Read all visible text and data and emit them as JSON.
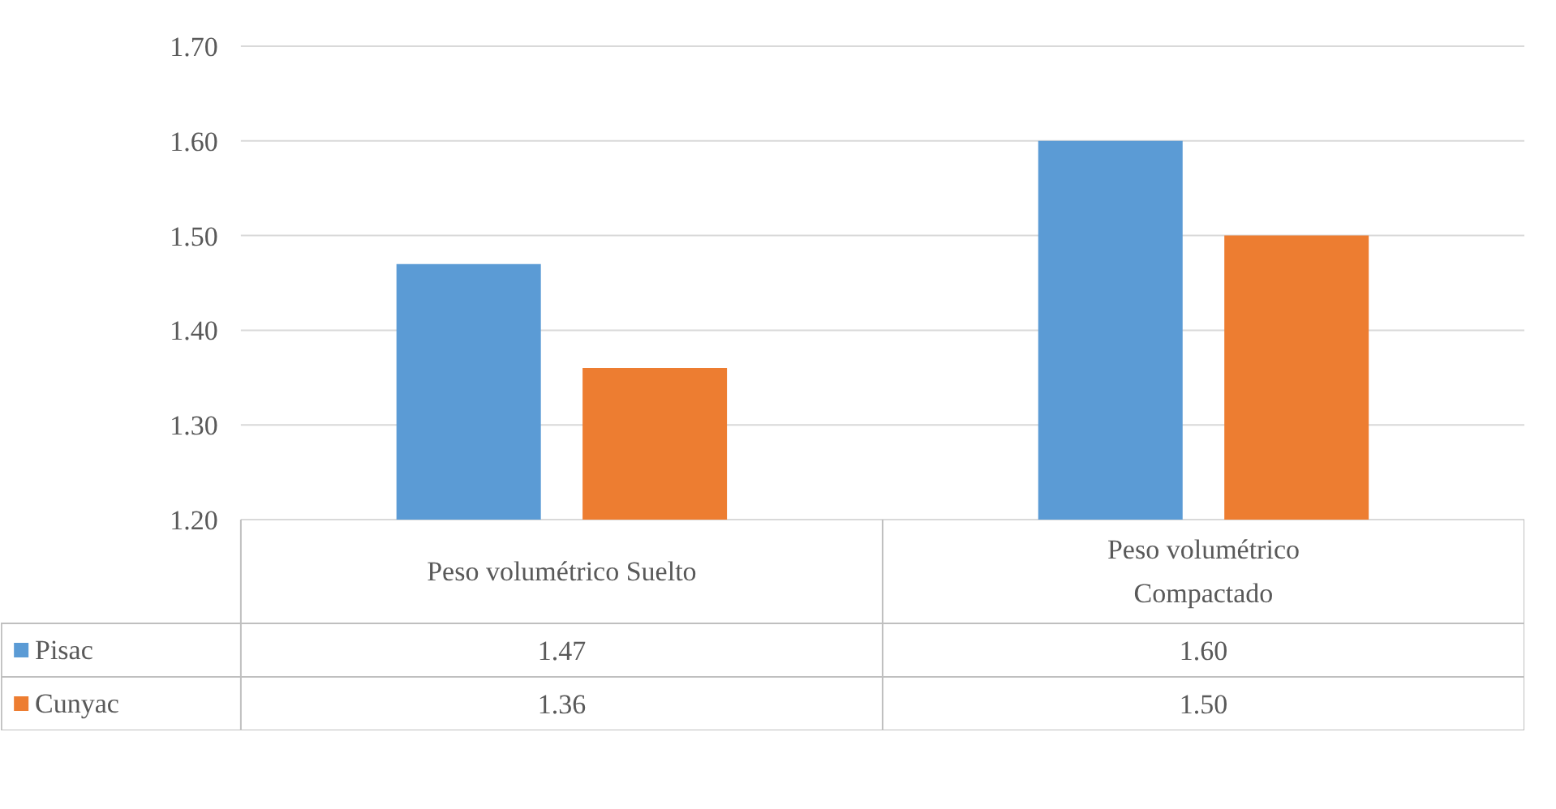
{
  "chart_data": {
    "type": "bar",
    "categories": [
      "Peso volumétrico Suelto",
      "Peso volumétrico Compactado"
    ],
    "series": [
      {
        "name": "Pisac",
        "color": "#5b9bd5",
        "values": [
          1.47,
          1.6
        ],
        "value_labels": [
          "1.47",
          "1.60"
        ]
      },
      {
        "name": "Cunyac",
        "color": "#ed7d31",
        "values": [
          1.36,
          1.5
        ],
        "value_labels": [
          "1.36",
          "1.50"
        ]
      }
    ],
    "ylim": [
      1.2,
      1.7
    ],
    "yticks": [
      {
        "value": 1.2,
        "label": "1.20"
      },
      {
        "value": 1.3,
        "label": "1.30"
      },
      {
        "value": 1.4,
        "label": "1.40"
      },
      {
        "value": 1.5,
        "label": "1.50"
      },
      {
        "value": 1.6,
        "label": "1.60"
      },
      {
        "value": 1.7,
        "label": "1.70"
      }
    ],
    "grid": "y",
    "legend": "bottom"
  }
}
